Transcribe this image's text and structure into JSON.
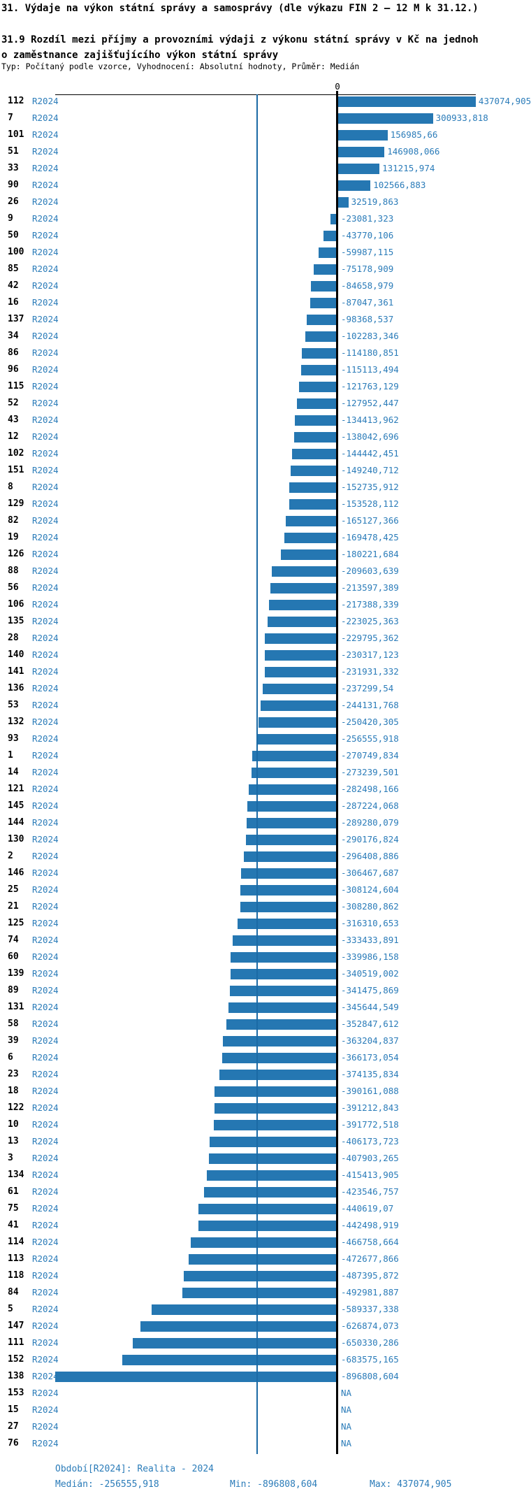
{
  "header": {
    "title": "31. Výdaje na výkon státní správy a samosprávy (dle výkazu FIN 2 – 12 M k 31.12.)",
    "subtitle": "31.9 Rozdíl mezi příjmy a provozními výdaji z výkonu státní správy v Kč na jednoho zaměstnance zajišťujícího výkon státní správy",
    "meta": "Typ: Počítaný podle vzorce, Vyhodnocení: Absolutní hodnoty, Průměr: Medián"
  },
  "chart_data": {
    "type": "bar",
    "orientation": "horizontal",
    "title": "31.9 Rozdíl mezi příjmy a provozními výdaji z výkonu státní správy v Kč na jednoho zaměstnance zajišťujícího výkon státní správy",
    "period_label": "R2024",
    "zero_label": "0",
    "na_label": "NA",
    "value_axis": {
      "min": -896808.604,
      "max": 437074.905,
      "zero_label": "0"
    },
    "median_value": -256555.918,
    "legend_position": "none",
    "grid": false,
    "rows": [
      {
        "id": "112",
        "period": "R2024",
        "value": 437074.905,
        "label": "437074,905"
      },
      {
        "id": "7",
        "period": "R2024",
        "value": 300933.818,
        "label": "300933,818"
      },
      {
        "id": "101",
        "period": "R2024",
        "value": 156985.66,
        "label": "156985,66"
      },
      {
        "id": "51",
        "period": "R2024",
        "value": 146908.066,
        "label": "146908,066"
      },
      {
        "id": "33",
        "period": "R2024",
        "value": 131215.974,
        "label": "131215,974"
      },
      {
        "id": "90",
        "period": "R2024",
        "value": 102566.883,
        "label": "102566,883"
      },
      {
        "id": "26",
        "period": "R2024",
        "value": 32519.863,
        "label": "32519,863"
      },
      {
        "id": "9",
        "period": "R2024",
        "value": -23081.323,
        "label": "-23081,323"
      },
      {
        "id": "50",
        "period": "R2024",
        "value": -43770.106,
        "label": "-43770,106"
      },
      {
        "id": "100",
        "period": "R2024",
        "value": -59987.115,
        "label": "-59987,115"
      },
      {
        "id": "85",
        "period": "R2024",
        "value": -75178.909,
        "label": "-75178,909"
      },
      {
        "id": "42",
        "period": "R2024",
        "value": -84658.979,
        "label": "-84658,979"
      },
      {
        "id": "16",
        "period": "R2024",
        "value": -87047.361,
        "label": "-87047,361"
      },
      {
        "id": "137",
        "period": "R2024",
        "value": -98368.537,
        "label": "-98368,537"
      },
      {
        "id": "34",
        "period": "R2024",
        "value": -102283.346,
        "label": "-102283,346"
      },
      {
        "id": "86",
        "period": "R2024",
        "value": -114180.851,
        "label": "-114180,851"
      },
      {
        "id": "96",
        "period": "R2024",
        "value": -115113.494,
        "label": "-115113,494"
      },
      {
        "id": "115",
        "period": "R2024",
        "value": -121763.129,
        "label": "-121763,129"
      },
      {
        "id": "52",
        "period": "R2024",
        "value": -127952.447,
        "label": "-127952,447"
      },
      {
        "id": "43",
        "period": "R2024",
        "value": -134413.962,
        "label": "-134413,962"
      },
      {
        "id": "12",
        "period": "R2024",
        "value": -138042.696,
        "label": "-138042,696"
      },
      {
        "id": "102",
        "period": "R2024",
        "value": -144442.451,
        "label": "-144442,451"
      },
      {
        "id": "151",
        "period": "R2024",
        "value": -149240.712,
        "label": "-149240,712"
      },
      {
        "id": "8",
        "period": "R2024",
        "value": -152735.912,
        "label": "-152735,912"
      },
      {
        "id": "129",
        "period": "R2024",
        "value": -153528.112,
        "label": "-153528,112"
      },
      {
        "id": "82",
        "period": "R2024",
        "value": -165127.366,
        "label": "-165127,366"
      },
      {
        "id": "19",
        "period": "R2024",
        "value": -169478.425,
        "label": "-169478,425"
      },
      {
        "id": "126",
        "period": "R2024",
        "value": -180221.684,
        "label": "-180221,684"
      },
      {
        "id": "88",
        "period": "R2024",
        "value": -209603.639,
        "label": "-209603,639"
      },
      {
        "id": "56",
        "period": "R2024",
        "value": -213597.389,
        "label": "-213597,389"
      },
      {
        "id": "106",
        "period": "R2024",
        "value": -217388.339,
        "label": "-217388,339"
      },
      {
        "id": "135",
        "period": "R2024",
        "value": -223025.363,
        "label": "-223025,363"
      },
      {
        "id": "28",
        "period": "R2024",
        "value": -229795.362,
        "label": "-229795,362"
      },
      {
        "id": "140",
        "period": "R2024",
        "value": -230317.123,
        "label": "-230317,123"
      },
      {
        "id": "141",
        "period": "R2024",
        "value": -231931.332,
        "label": "-231931,332"
      },
      {
        "id": "136",
        "period": "R2024",
        "value": -237299.54,
        "label": "-237299,54"
      },
      {
        "id": "53",
        "period": "R2024",
        "value": -244131.768,
        "label": "-244131,768"
      },
      {
        "id": "132",
        "period": "R2024",
        "value": -250420.305,
        "label": "-250420,305"
      },
      {
        "id": "93",
        "period": "R2024",
        "value": -256555.918,
        "label": "-256555,918"
      },
      {
        "id": "1",
        "period": "R2024",
        "value": -270749.834,
        "label": "-270749,834"
      },
      {
        "id": "14",
        "period": "R2024",
        "value": -273239.501,
        "label": "-273239,501"
      },
      {
        "id": "121",
        "period": "R2024",
        "value": -282498.166,
        "label": "-282498,166"
      },
      {
        "id": "145",
        "period": "R2024",
        "value": -287224.068,
        "label": "-287224,068"
      },
      {
        "id": "144",
        "period": "R2024",
        "value": -289280.079,
        "label": "-289280,079"
      },
      {
        "id": "130",
        "period": "R2024",
        "value": -290176.824,
        "label": "-290176,824"
      },
      {
        "id": "2",
        "period": "R2024",
        "value": -296408.886,
        "label": "-296408,886"
      },
      {
        "id": "146",
        "period": "R2024",
        "value": -306467.687,
        "label": "-306467,687"
      },
      {
        "id": "25",
        "period": "R2024",
        "value": -308124.604,
        "label": "-308124,604"
      },
      {
        "id": "21",
        "period": "R2024",
        "value": -308280.862,
        "label": "-308280,862"
      },
      {
        "id": "125",
        "period": "R2024",
        "value": -316310.653,
        "label": "-316310,653"
      },
      {
        "id": "74",
        "period": "R2024",
        "value": -333433.891,
        "label": "-333433,891"
      },
      {
        "id": "60",
        "period": "R2024",
        "value": -339986.158,
        "label": "-339986,158"
      },
      {
        "id": "139",
        "period": "R2024",
        "value": -340519.002,
        "label": "-340519,002"
      },
      {
        "id": "89",
        "period": "R2024",
        "value": -341475.869,
        "label": "-341475,869"
      },
      {
        "id": "131",
        "period": "R2024",
        "value": -345644.549,
        "label": "-345644,549"
      },
      {
        "id": "58",
        "period": "R2024",
        "value": -352847.612,
        "label": "-352847,612"
      },
      {
        "id": "39",
        "period": "R2024",
        "value": -363204.837,
        "label": "-363204,837"
      },
      {
        "id": "6",
        "period": "R2024",
        "value": -366173.054,
        "label": "-366173,054"
      },
      {
        "id": "23",
        "period": "R2024",
        "value": -374135.834,
        "label": "-374135,834"
      },
      {
        "id": "18",
        "period": "R2024",
        "value": -390161.088,
        "label": "-390161,088"
      },
      {
        "id": "122",
        "period": "R2024",
        "value": -391212.843,
        "label": "-391212,843"
      },
      {
        "id": "10",
        "period": "R2024",
        "value": -391772.518,
        "label": "-391772,518"
      },
      {
        "id": "13",
        "period": "R2024",
        "value": -406173.723,
        "label": "-406173,723"
      },
      {
        "id": "3",
        "period": "R2024",
        "value": -407903.265,
        "label": "-407903,265"
      },
      {
        "id": "134",
        "period": "R2024",
        "value": -415413.905,
        "label": "-415413,905"
      },
      {
        "id": "61",
        "period": "R2024",
        "value": -423546.757,
        "label": "-423546,757"
      },
      {
        "id": "75",
        "period": "R2024",
        "value": -440619.07,
        "label": "-440619,07"
      },
      {
        "id": "41",
        "period": "R2024",
        "value": -442498.919,
        "label": "-442498,919"
      },
      {
        "id": "114",
        "period": "R2024",
        "value": -466758.664,
        "label": "-466758,664"
      },
      {
        "id": "113",
        "period": "R2024",
        "value": -472677.866,
        "label": "-472677,866"
      },
      {
        "id": "118",
        "period": "R2024",
        "value": -487395.872,
        "label": "-487395,872"
      },
      {
        "id": "84",
        "period": "R2024",
        "value": -492981.887,
        "label": "-492981,887"
      },
      {
        "id": "5",
        "period": "R2024",
        "value": -589337.338,
        "label": "-589337,338"
      },
      {
        "id": "147",
        "period": "R2024",
        "value": -626874.073,
        "label": "-626874,073"
      },
      {
        "id": "111",
        "period": "R2024",
        "value": -650330.286,
        "label": "-650330,286"
      },
      {
        "id": "152",
        "period": "R2024",
        "value": -683575.165,
        "label": "-683575,165"
      },
      {
        "id": "138",
        "period": "R2024",
        "value": -896808.604,
        "label": "-896808,604"
      },
      {
        "id": "153",
        "period": "R2024",
        "value": null,
        "label": "NA"
      },
      {
        "id": "15",
        "period": "R2024",
        "value": null,
        "label": "NA"
      },
      {
        "id": "27",
        "period": "R2024",
        "value": null,
        "label": "NA"
      },
      {
        "id": "76",
        "period": "R2024",
        "value": null,
        "label": "NA"
      }
    ]
  },
  "footer": {
    "period": "Období[R2024]: Realita - 2024",
    "median": "Medián: -256555,918",
    "min": "Min: -896808,604",
    "max": "Max: 437074,905"
  },
  "colors": {
    "bar_blue": "#2577b2",
    "text_blue": "#2b7cb9",
    "median_line_blue": "#1b6aa5",
    "axis_black": "#000000"
  }
}
